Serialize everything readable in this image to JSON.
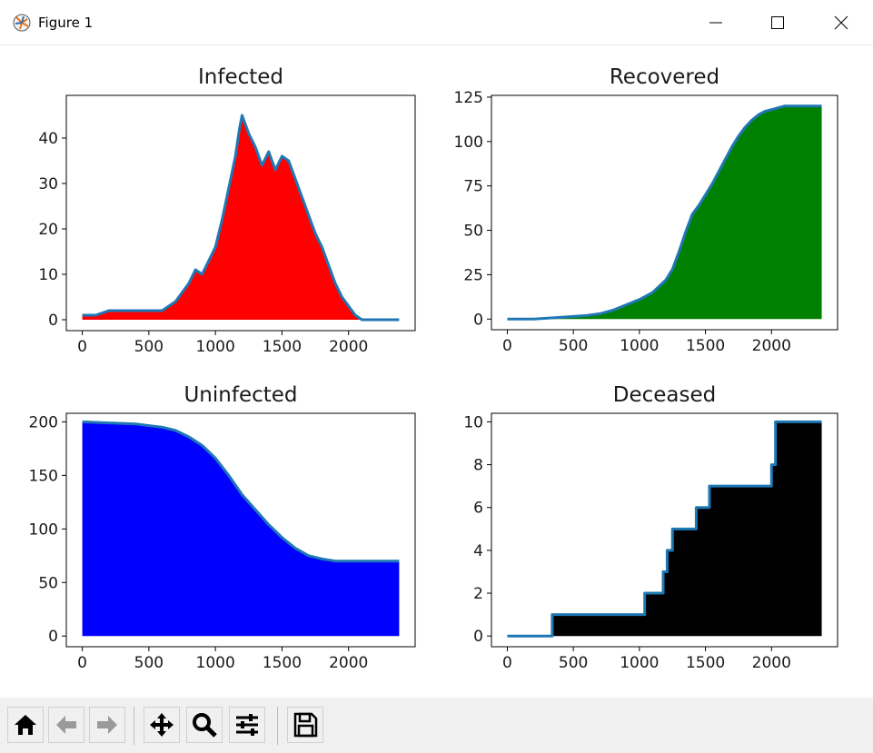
{
  "window": {
    "title": "Figure 1"
  },
  "toolbar": {
    "buttons": [
      {
        "name": "home-button",
        "icon": "home-icon"
      },
      {
        "name": "back-button",
        "icon": "arrow-left-icon"
      },
      {
        "name": "forward-button",
        "icon": "arrow-right-icon"
      },
      {
        "name": "pan-button",
        "icon": "move-icon"
      },
      {
        "name": "zoom-button",
        "icon": "magnifier-icon"
      },
      {
        "name": "configure-subplots-button",
        "icon": "sliders-icon"
      },
      {
        "name": "save-button",
        "icon": "floppy-disk-icon"
      }
    ]
  },
  "chart_data": [
    {
      "type": "area",
      "title": "Infected",
      "xlabel": "",
      "ylabel": "",
      "xlim": [
        -120,
        2500
      ],
      "ylim": [
        -2.4,
        49.4
      ],
      "xticks": [
        0,
        500,
        1000,
        1500,
        2000
      ],
      "yticks": [
        0,
        10,
        20,
        30,
        40
      ],
      "fill_color": "#ff0000",
      "line_color": "#1f77b4",
      "grid": false,
      "x": [
        0,
        100,
        200,
        300,
        400,
        500,
        600,
        650,
        700,
        750,
        800,
        850,
        900,
        950,
        1000,
        1050,
        1100,
        1150,
        1180,
        1200,
        1250,
        1300,
        1350,
        1400,
        1450,
        1500,
        1550,
        1600,
        1650,
        1700,
        1750,
        1800,
        1850,
        1900,
        1950,
        2000,
        2050,
        2100,
        2150,
        2200,
        2300,
        2380
      ],
      "y": [
        1,
        1,
        2,
        2,
        2,
        2,
        2,
        3,
        4,
        6,
        8,
        11,
        10,
        13,
        16,
        22,
        29,
        36,
        42,
        45,
        41,
        38,
        34,
        37,
        33,
        36,
        35,
        31,
        27,
        23,
        19,
        16,
        12,
        8,
        5,
        3,
        1,
        0,
        0,
        0,
        0,
        0
      ]
    },
    {
      "type": "area",
      "title": "Recovered",
      "xlabel": "",
      "ylabel": "",
      "xlim": [
        -120,
        2500
      ],
      "ylim": [
        -6.0,
        126.0
      ],
      "xticks": [
        0,
        500,
        1000,
        1500,
        2000
      ],
      "yticks": [
        0,
        25,
        50,
        75,
        100,
        125
      ],
      "fill_color": "#008000",
      "line_color": "#1f77b4",
      "grid": false,
      "x": [
        0,
        200,
        400,
        600,
        700,
        800,
        900,
        1000,
        1100,
        1200,
        1250,
        1300,
        1350,
        1400,
        1450,
        1500,
        1550,
        1600,
        1650,
        1700,
        1750,
        1800,
        1850,
        1900,
        1950,
        2000,
        2100,
        2200,
        2300,
        2380
      ],
      "y": [
        0,
        0,
        1,
        2,
        3,
        5,
        8,
        11,
        15,
        22,
        28,
        38,
        49,
        59,
        64,
        70,
        76,
        83,
        90,
        97,
        103,
        108,
        112,
        115,
        117,
        118,
        120,
        120,
        120,
        120
      ]
    },
    {
      "type": "area",
      "title": "Uninfected",
      "xlabel": "",
      "ylabel": "",
      "xlim": [
        -120,
        2500
      ],
      "ylim": [
        -10.0,
        208.0
      ],
      "xticks": [
        0,
        500,
        1000,
        1500,
        2000
      ],
      "yticks": [
        0,
        50,
        100,
        150,
        200
      ],
      "fill_color": "#0000ff",
      "line_color": "#1f77b4",
      "grid": false,
      "x": [
        0,
        200,
        400,
        600,
        700,
        800,
        900,
        1000,
        1100,
        1200,
        1300,
        1400,
        1500,
        1600,
        1700,
        1800,
        1900,
        2000,
        2100,
        2200,
        2300,
        2380
      ],
      "y": [
        200,
        199,
        198,
        195,
        192,
        186,
        178,
        166,
        150,
        132,
        118,
        104,
        92,
        82,
        75,
        72,
        70,
        70,
        70,
        70,
        70,
        70
      ]
    },
    {
      "type": "area",
      "title": "Deceased",
      "xlabel": "",
      "ylabel": "",
      "xlim": [
        -120,
        2500
      ],
      "ylim": [
        -0.5,
        10.4
      ],
      "xticks": [
        0,
        500,
        1000,
        1500,
        2000
      ],
      "yticks": [
        0,
        2,
        4,
        6,
        8,
        10
      ],
      "fill_color": "#000000",
      "line_color": "#1f77b4",
      "grid": false,
      "x": [
        0,
        340,
        340,
        1040,
        1040,
        1180,
        1180,
        1210,
        1210,
        1250,
        1250,
        1430,
        1430,
        1530,
        1530,
        2000,
        2000,
        2030,
        2030,
        2380
      ],
      "y": [
        0,
        0,
        1,
        1,
        2,
        2,
        3,
        3,
        4,
        4,
        5,
        5,
        6,
        6,
        7,
        7,
        8,
        8,
        10,
        10
      ]
    }
  ]
}
